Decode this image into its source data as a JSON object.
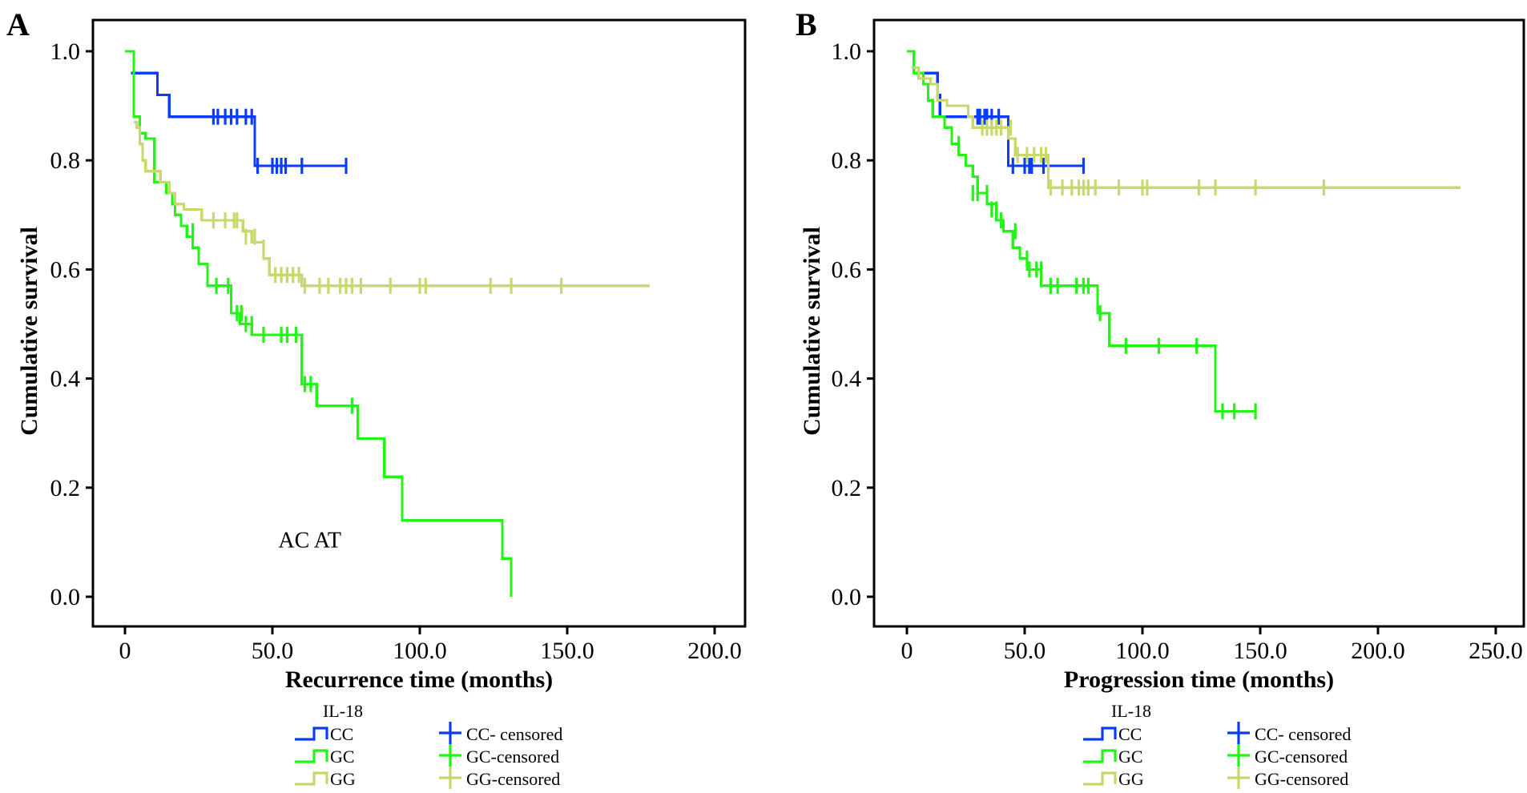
{
  "colors": {
    "CC": "#0a3dfa",
    "GC": "#22f515",
    "GG": "#c9d86c",
    "axis": "#000000"
  },
  "chart_data": [
    {
      "type": "line",
      "subtype": "kaplan-meier",
      "panel_label": "A",
      "title": "",
      "xlabel": "Recurrence time (months)",
      "ylabel": "Cumulative survival",
      "xlim": [
        -10,
        210
      ],
      "ylim": [
        -0.06,
        1.06
      ],
      "xticks": [
        0,
        50,
        100,
        150,
        200
      ],
      "xtick_labels": [
        "0",
        "50.0",
        "100.0",
        "150.0",
        "200.0"
      ],
      "yticks": [
        0,
        0.2,
        0.4,
        0.6,
        0.8,
        1.0
      ],
      "ytick_labels": [
        "0.0",
        "0.2",
        "0.4",
        "0.6",
        "0.8",
        "1.0"
      ],
      "grid": false,
      "annotation": "AC AT",
      "series": [
        {
          "name": "CC",
          "steps": [
            [
              2,
              0.96
            ],
            [
              11,
              0.92
            ],
            [
              15,
              0.88
            ],
            [
              44,
              0.79
            ],
            [
              75,
              0.79
            ]
          ],
          "censored": [
            [
              30,
              0.88
            ],
            [
              31.5,
              0.88
            ],
            [
              34,
              0.88
            ],
            [
              36,
              0.88
            ],
            [
              38,
              0.88
            ],
            [
              41,
              0.88
            ],
            [
              43,
              0.88
            ],
            [
              45,
              0.79
            ],
            [
              50,
              0.79
            ],
            [
              51.5,
              0.79
            ],
            [
              53,
              0.79
            ],
            [
              54.5,
              0.79
            ],
            [
              60,
              0.79
            ],
            [
              75,
              0.79
            ]
          ]
        },
        {
          "name": "GC",
          "steps": [
            [
              0,
              1.0
            ],
            [
              3,
              0.88
            ],
            [
              5,
              0.85
            ],
            [
              7,
              0.84
            ],
            [
              10,
              0.76
            ],
            [
              14,
              0.74
            ],
            [
              16,
              0.72
            ],
            [
              17,
              0.7
            ],
            [
              19,
              0.68
            ],
            [
              21,
              0.66
            ],
            [
              23,
              0.64
            ],
            [
              25,
              0.61
            ],
            [
              28,
              0.57
            ],
            [
              32,
              0.57
            ],
            [
              36,
              0.52
            ],
            [
              39,
              0.5
            ],
            [
              43,
              0.48
            ],
            [
              60,
              0.39
            ],
            [
              65,
              0.35
            ],
            [
              79,
              0.29
            ],
            [
              88,
              0.22
            ],
            [
              94,
              0.14
            ],
            [
              128,
              0.07
            ],
            [
              131,
              0.0
            ]
          ],
          "censored": [
            [
              23,
              0.67
            ],
            [
              31,
              0.57
            ],
            [
              35,
              0.57
            ],
            [
              38,
              0.52
            ],
            [
              39.5,
              0.52
            ],
            [
              41,
              0.5
            ],
            [
              43,
              0.5
            ],
            [
              47,
              0.48
            ],
            [
              53,
              0.48
            ],
            [
              55,
              0.48
            ],
            [
              58,
              0.48
            ],
            [
              61,
              0.39
            ],
            [
              63,
              0.39
            ],
            [
              77,
              0.35
            ]
          ]
        },
        {
          "name": "GG",
          "steps": [
            [
              3,
              0.87
            ],
            [
              4,
              0.86
            ],
            [
              5,
              0.83
            ],
            [
              6,
              0.8
            ],
            [
              7,
              0.78
            ],
            [
              12,
              0.76
            ],
            [
              15,
              0.74
            ],
            [
              17,
              0.72
            ],
            [
              20,
              0.71
            ],
            [
              26,
              0.69
            ],
            [
              40,
              0.67
            ],
            [
              43,
              0.65
            ],
            [
              47,
              0.62
            ],
            [
              49,
              0.59
            ],
            [
              60,
              0.57
            ],
            [
              178,
              0.57
            ]
          ],
          "censored": [
            [
              30,
              0.69
            ],
            [
              34,
              0.69
            ],
            [
              37,
              0.69
            ],
            [
              38,
              0.69
            ],
            [
              41,
              0.66
            ],
            [
              44,
              0.66
            ],
            [
              47,
              0.64
            ],
            [
              51,
              0.59
            ],
            [
              53,
              0.59
            ],
            [
              55,
              0.59
            ],
            [
              57,
              0.59
            ],
            [
              59,
              0.59
            ],
            [
              61,
              0.57
            ],
            [
              66,
              0.57
            ],
            [
              69,
              0.57
            ],
            [
              73,
              0.57
            ],
            [
              75,
              0.57
            ],
            [
              77,
              0.57
            ],
            [
              80,
              0.57
            ],
            [
              90,
              0.57
            ],
            [
              100,
              0.57
            ],
            [
              102,
              0.57
            ],
            [
              124,
              0.57
            ],
            [
              131,
              0.57
            ],
            [
              148,
              0.57
            ]
          ]
        }
      ],
      "legend": {
        "title": "IL-18",
        "placement": "bottom",
        "entries": [
          "CC",
          "GC",
          "GG",
          "CC- censored",
          "GC-censored",
          "GG-censored"
        ]
      }
    },
    {
      "type": "line",
      "subtype": "kaplan-meier",
      "panel_label": "B",
      "title": "",
      "xlabel": "Progression time (months)",
      "ylabel": "Cumulative survival",
      "xlim": [
        -10,
        262
      ],
      "ylim": [
        -0.06,
        1.06
      ],
      "xticks": [
        0,
        50,
        100,
        150,
        200,
        250
      ],
      "xtick_labels": [
        "0",
        "50.0",
        "100.0",
        "150.0",
        "200.0",
        "250.0"
      ],
      "yticks": [
        0,
        0.2,
        0.4,
        0.6,
        0.8,
        1.0
      ],
      "ytick_labels": [
        "0.0",
        "0.2",
        "0.4",
        "0.6",
        "0.8",
        "1.0"
      ],
      "grid": false,
      "series": [
        {
          "name": "CC",
          "steps": [
            [
              3,
              0.96
            ],
            [
              13,
              0.92
            ],
            [
              14,
              0.88
            ],
            [
              43,
              0.79
            ],
            [
              75,
              0.79
            ]
          ],
          "censored": [
            [
              30,
              0.88
            ],
            [
              31,
              0.88
            ],
            [
              33,
              0.88
            ],
            [
              34,
              0.88
            ],
            [
              36,
              0.88
            ],
            [
              39,
              0.88
            ],
            [
              45,
              0.79
            ],
            [
              50,
              0.79
            ],
            [
              52,
              0.79
            ],
            [
              53,
              0.79
            ],
            [
              58,
              0.79
            ],
            [
              75,
              0.79
            ]
          ]
        },
        {
          "name": "GC",
          "steps": [
            [
              0,
              1.0
            ],
            [
              3,
              0.96
            ],
            [
              7,
              0.94
            ],
            [
              9,
              0.91
            ],
            [
              11,
              0.88
            ],
            [
              16,
              0.86
            ],
            [
              19,
              0.83
            ],
            [
              22,
              0.81
            ],
            [
              25,
              0.79
            ],
            [
              28,
              0.77
            ],
            [
              30,
              0.74
            ],
            [
              34,
              0.72
            ],
            [
              38,
              0.69
            ],
            [
              41,
              0.67
            ],
            [
              45,
              0.64
            ],
            [
              48,
              0.62
            ],
            [
              51,
              0.6
            ],
            [
              54,
              0.6
            ],
            [
              57,
              0.57
            ],
            [
              81,
              0.52
            ],
            [
              86,
              0.46
            ],
            [
              131,
              0.34
            ],
            [
              148,
              0.34
            ]
          ],
          "censored": [
            [
              22,
              0.83
            ],
            [
              28,
              0.74
            ],
            [
              30,
              0.74
            ],
            [
              34,
              0.74
            ],
            [
              36,
              0.71
            ],
            [
              38,
              0.71
            ],
            [
              40,
              0.69
            ],
            [
              46,
              0.67
            ],
            [
              51,
              0.62
            ],
            [
              52,
              0.6
            ],
            [
              55,
              0.6
            ],
            [
              57,
              0.6
            ],
            [
              61,
              0.57
            ],
            [
              64,
              0.57
            ],
            [
              72,
              0.57
            ],
            [
              75,
              0.57
            ],
            [
              77,
              0.57
            ],
            [
              82,
              0.52
            ],
            [
              93,
              0.46
            ],
            [
              107,
              0.46
            ],
            [
              123,
              0.46
            ],
            [
              134,
              0.34
            ],
            [
              139,
              0.34
            ],
            [
              148,
              0.34
            ]
          ]
        },
        {
          "name": "GG",
          "steps": [
            [
              2,
              0.97
            ],
            [
              5,
              0.95
            ],
            [
              10,
              0.94
            ],
            [
              13,
              0.91
            ],
            [
              17,
              0.9
            ],
            [
              26,
              0.88
            ],
            [
              28,
              0.86
            ],
            [
              43,
              0.84
            ],
            [
              46,
              0.81
            ],
            [
              60,
              0.75
            ],
            [
              235,
              0.75
            ]
          ],
          "censored": [
            [
              32,
              0.86
            ],
            [
              34,
              0.86
            ],
            [
              36,
              0.86
            ],
            [
              38,
              0.86
            ],
            [
              40,
              0.86
            ],
            [
              44,
              0.86
            ],
            [
              47,
              0.81
            ],
            [
              51,
              0.81
            ],
            [
              54,
              0.81
            ],
            [
              57,
              0.81
            ],
            [
              59,
              0.81
            ],
            [
              61,
              0.75
            ],
            [
              66,
              0.75
            ],
            [
              70,
              0.75
            ],
            [
              73,
              0.75
            ],
            [
              75,
              0.75
            ],
            [
              77,
              0.75
            ],
            [
              80,
              0.75
            ],
            [
              90,
              0.75
            ],
            [
              100,
              0.75
            ],
            [
              102,
              0.75
            ],
            [
              124,
              0.75
            ],
            [
              131,
              0.75
            ],
            [
              148,
              0.75
            ],
            [
              177,
              0.75
            ]
          ]
        }
      ],
      "legend": {
        "title": "IL-18",
        "placement": "bottom",
        "entries": [
          "CC",
          "GC",
          "GG",
          "CC- censored",
          "GC-censored",
          "GG-censored"
        ]
      }
    }
  ]
}
